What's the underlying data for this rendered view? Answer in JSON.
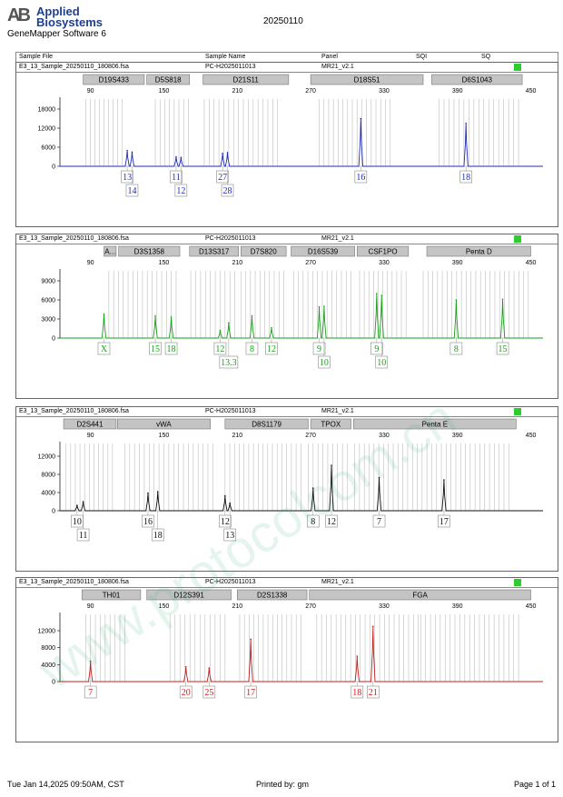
{
  "header": {
    "logo_line1": "Applied",
    "logo_line2": "Biosystems",
    "software": "GeneMapper Software 6",
    "date": "20250110"
  },
  "columns": {
    "sample_file": "Sample File",
    "sample_name": "Sample Name",
    "panel": "Panel",
    "sqi": "SQI",
    "sq": "SQ"
  },
  "colors": {
    "blue": "#1f2bb8",
    "green": "#1a9e1a",
    "black": "#111111",
    "red": "#c0211f",
    "quality": "#2ecc2e"
  },
  "footer": {
    "timestamp": "Tue Jan 14,2025 09:50AM, CST",
    "printed_by": "Printed by: gm",
    "page": "Page 1 of 1"
  },
  "watermark": "www.protocolcom.cn",
  "chart_data": [
    {
      "type": "line",
      "sample_file": "E3_13_Sample_20250110_180806.fsa",
      "sample_name": "PC-H2025011013",
      "panel": "MR21_v2.1",
      "dye": "blue",
      "xlim": [
        65,
        460
      ],
      "x_ticks": [
        90,
        150,
        210,
        270,
        330,
        390,
        450
      ],
      "ylim": [
        0,
        20000
      ],
      "y_ticks": [
        6000,
        12000,
        18000
      ],
      "markers": [
        {
          "name": "D19S433",
          "start": 84,
          "end": 134
        },
        {
          "name": "D5S818",
          "start": 136,
          "end": 171
        },
        {
          "name": "D21S11",
          "start": 182,
          "end": 252
        },
        {
          "name": "D18S51",
          "start": 270,
          "end": 362
        },
        {
          "name": "D6S1043",
          "start": 369,
          "end": 443
        }
      ],
      "peaks": [
        {
          "x": 120,
          "y": 5000
        },
        {
          "x": 124,
          "y": 4500
        },
        {
          "x": 160,
          "y": 3000
        },
        {
          "x": 164,
          "y": 2800
        },
        {
          "x": 198,
          "y": 4100
        },
        {
          "x": 202,
          "y": 4300
        },
        {
          "x": 311,
          "y": 15000
        },
        {
          "x": 397,
          "y": 13500
        }
      ],
      "bins": [
        [
          86,
          116
        ],
        [
          143,
          170
        ],
        [
          183,
          243
        ],
        [
          277,
          335
        ],
        [
          375,
          440
        ]
      ],
      "alleles": [
        {
          "x": 120,
          "label": "13",
          "row": 1
        },
        {
          "x": 124,
          "label": "14",
          "row": 2
        },
        {
          "x": 160,
          "label": "11",
          "row": 1
        },
        {
          "x": 164,
          "label": "12",
          "row": 2
        },
        {
          "x": 198,
          "label": "27",
          "row": 1
        },
        {
          "x": 202,
          "label": "28",
          "row": 2
        },
        {
          "x": 311,
          "label": "16",
          "row": 1
        },
        {
          "x": 397,
          "label": "18",
          "row": 1
        }
      ]
    },
    {
      "type": "line",
      "sample_file": "E3_13_Sample_20250110_180806.fsa",
      "sample_name": "PC-H2025011013",
      "panel": "MR21_v2.1",
      "dye": "green",
      "xlim": [
        65,
        460
      ],
      "x_ticks": [
        90,
        150,
        210,
        270,
        330,
        390,
        450
      ],
      "ylim": [
        0,
        10000
      ],
      "y_ticks": [
        3000,
        6000,
        9000
      ],
      "markers": [
        {
          "name": "A...",
          "start": 101,
          "end": 111
        },
        {
          "name": "D3S1358",
          "start": 113,
          "end": 163
        },
        {
          "name": "D13S317",
          "start": 171,
          "end": 211
        },
        {
          "name": "D7S820",
          "start": 213,
          "end": 250
        },
        {
          "name": "D16S539",
          "start": 254,
          "end": 306
        },
        {
          "name": "CSF1PO",
          "start": 308,
          "end": 350
        },
        {
          "name": "Penta D",
          "start": 365,
          "end": 450
        }
      ],
      "peaks": [
        {
          "x": 101,
          "y": 3800
        },
        {
          "x": 143,
          "y": 3500
        },
        {
          "x": 156,
          "y": 3300
        },
        {
          "x": 196,
          "y": 1200
        },
        {
          "x": 203,
          "y": 2400
        },
        {
          "x": 222,
          "y": 3500
        },
        {
          "x": 238,
          "y": 1600
        },
        {
          "x": 277,
          "y": 4900
        },
        {
          "x": 281,
          "y": 5000
        },
        {
          "x": 324,
          "y": 7000
        },
        {
          "x": 328,
          "y": 6700
        },
        {
          "x": 389,
          "y": 6000
        },
        {
          "x": 427,
          "y": 6100
        }
      ],
      "bins": [
        [
          105,
          160
        ],
        [
          172,
          208
        ],
        [
          213,
          248
        ],
        [
          256,
          303
        ],
        [
          310,
          348
        ],
        [
          362,
          448
        ]
      ],
      "alleles": [
        {
          "x": 101,
          "label": "X",
          "row": 1
        },
        {
          "x": 143,
          "label": "15",
          "row": 1
        },
        {
          "x": 156,
          "label": "18",
          "row": 1
        },
        {
          "x": 196,
          "label": "12",
          "row": 1
        },
        {
          "x": 203,
          "label": "13.3",
          "row": 2
        },
        {
          "x": 222,
          "label": "8",
          "row": 1
        },
        {
          "x": 238,
          "label": "12",
          "row": 1
        },
        {
          "x": 277,
          "label": "9",
          "row": 1
        },
        {
          "x": 281,
          "label": "10",
          "row": 2
        },
        {
          "x": 324,
          "label": "9",
          "row": 1
        },
        {
          "x": 328,
          "label": "10",
          "row": 2
        },
        {
          "x": 389,
          "label": "8",
          "row": 1
        },
        {
          "x": 427,
          "label": "15",
          "row": 1
        }
      ]
    },
    {
      "type": "line",
      "sample_file": "E3_13_Sample_20250110_180806.fsa",
      "sample_name": "PC-H2025011013",
      "panel": "MR21_v2.1",
      "dye": "black",
      "xlim": [
        65,
        460
      ],
      "x_ticks": [
        90,
        150,
        210,
        270,
        330,
        390,
        450
      ],
      "ylim": [
        0,
        14000
      ],
      "y_ticks": [
        4000,
        8000,
        12000
      ],
      "markers": [
        {
          "name": "D2S441",
          "start": 68,
          "end": 111
        },
        {
          "name": "vWA",
          "start": 112,
          "end": 188
        },
        {
          "name": "D8S1179",
          "start": 200,
          "end": 268
        },
        {
          "name": "TPOX",
          "start": 270,
          "end": 303
        },
        {
          "name": "Penta E",
          "start": 305,
          "end": 438
        }
      ],
      "peaks": [
        {
          "x": 79,
          "y": 1200
        },
        {
          "x": 84,
          "y": 2000
        },
        {
          "x": 137,
          "y": 3900
        },
        {
          "x": 145,
          "y": 4200
        },
        {
          "x": 200,
          "y": 3300
        },
        {
          "x": 204,
          "y": 1700
        },
        {
          "x": 272,
          "y": 5000
        },
        {
          "x": 287,
          "y": 10000
        },
        {
          "x": 326,
          "y": 7300
        },
        {
          "x": 379,
          "y": 6800
        }
      ],
      "bins": [
        [
          70,
          108
        ],
        [
          118,
          190
        ],
        [
          200,
          262
        ],
        [
          268,
          300
        ],
        [
          306,
          432
        ]
      ],
      "alleles": [
        {
          "x": 79,
          "label": "10",
          "row": 1
        },
        {
          "x": 84,
          "label": "11",
          "row": 2
        },
        {
          "x": 137,
          "label": "16",
          "row": 1
        },
        {
          "x": 145,
          "label": "18",
          "row": 2
        },
        {
          "x": 200,
          "label": "12",
          "row": 1
        },
        {
          "x": 204,
          "label": "13",
          "row": 2
        },
        {
          "x": 272,
          "label": "8",
          "row": 1
        },
        {
          "x": 287,
          "label": "12",
          "row": 1
        },
        {
          "x": 326,
          "label": "7",
          "row": 1
        },
        {
          "x": 379,
          "label": "17",
          "row": 1
        }
      ]
    },
    {
      "type": "line",
      "sample_file": "E3_13_Sample_20250110_180806.fsa",
      "sample_name": "PC-H2025011013",
      "panel": "MR21_v2.1",
      "dye": "red",
      "xlim": [
        65,
        460
      ],
      "x_ticks": [
        90,
        150,
        210,
        270,
        330,
        390,
        450
      ],
      "ylim": [
        0,
        15000
      ],
      "y_ticks": [
        4000,
        8000,
        12000
      ],
      "markers": [
        {
          "name": "TH01",
          "start": 83,
          "end": 131
        },
        {
          "name": "D12S391",
          "start": 136,
          "end": 205
        },
        {
          "name": "D2S1338",
          "start": 210,
          "end": 267
        },
        {
          "name": "FGA",
          "start": 269,
          "end": 450
        }
      ],
      "peaks": [
        {
          "x": 90,
          "y": 4800
        },
        {
          "x": 168,
          "y": 3500
        },
        {
          "x": 187,
          "y": 3200
        },
        {
          "x": 221,
          "y": 10000
        },
        {
          "x": 308,
          "y": 6000
        },
        {
          "x": 321,
          "y": 13000
        }
      ],
      "bins": [
        [
          86,
          118
        ],
        [
          155,
          200
        ],
        [
          212,
          262
        ],
        [
          275,
          358
        ],
        [
          360,
          440
        ]
      ],
      "alleles": [
        {
          "x": 90,
          "label": "7",
          "row": 1
        },
        {
          "x": 168,
          "label": "20",
          "row": 1
        },
        {
          "x": 187,
          "label": "25",
          "row": 1
        },
        {
          "x": 221,
          "label": "17",
          "row": 1
        },
        {
          "x": 308,
          "label": "18",
          "row": 1
        },
        {
          "x": 321,
          "label": "21",
          "row": 1
        }
      ]
    }
  ]
}
